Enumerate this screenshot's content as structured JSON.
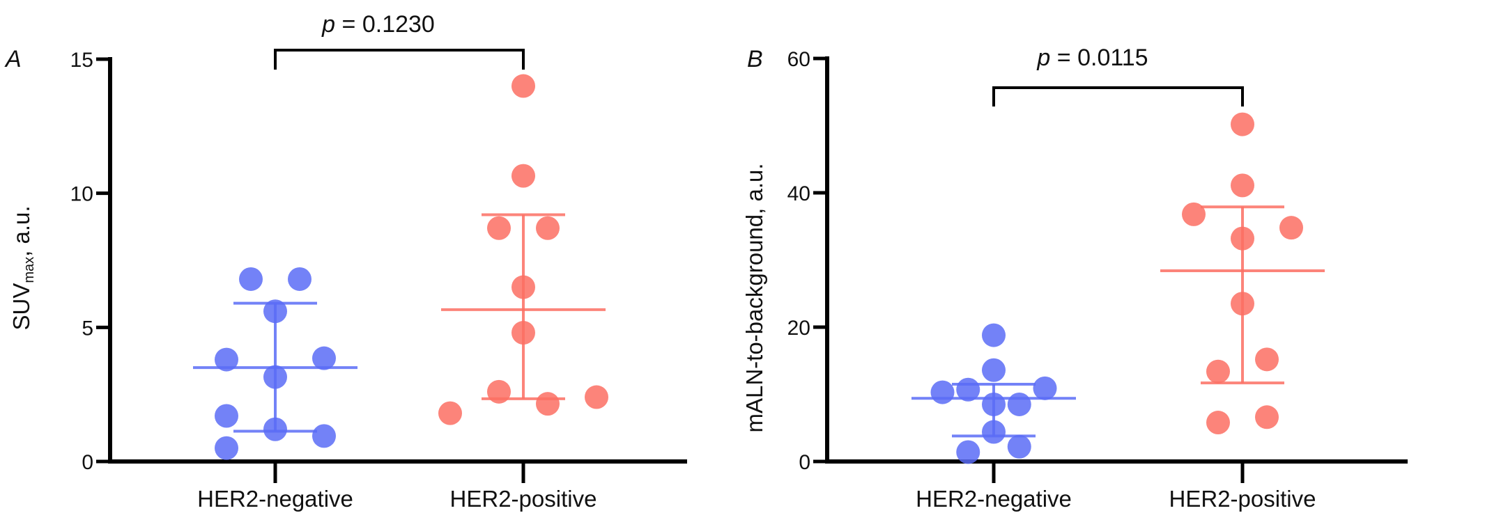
{
  "chart_data": [
    {
      "type": "scatter",
      "panel_label": "A",
      "ylabel": "SUV",
      "ylabel_subscript": "max",
      "ylabel_suffix": ", a.u.",
      "ylim": [
        0,
        15
      ],
      "yticks": [
        "0",
        "5",
        "10",
        "15"
      ],
      "ytick_values": [
        0,
        5,
        10,
        15
      ],
      "categories": [
        "HER2-negative",
        "HER2-positive"
      ],
      "grid": false,
      "annotation": {
        "p_symbol": "p",
        "p_text": "= 0.1230",
        "between": [
          "HER2-negative",
          "HER2-positive"
        ]
      },
      "series": [
        {
          "category": "HER2-negative",
          "color": "#5a6cf6",
          "values": [
            6.8,
            6.8,
            5.6,
            3.8,
            3.85,
            3.15,
            1.7,
            1.2,
            0.95,
            0.5
          ],
          "mean": 3.5,
          "error_low": 1.13,
          "error_high": 5.9
        },
        {
          "category": "HER2-positive",
          "color": "#fb6f63",
          "values": [
            14.0,
            10.65,
            8.7,
            8.7,
            6.5,
            4.8,
            2.6,
            2.15,
            2.4,
            1.8
          ],
          "mean": 5.66,
          "error_low": 2.34,
          "error_high": 9.2
        }
      ]
    },
    {
      "type": "scatter",
      "panel_label": "B",
      "ylabel": "mALN-to-background, a.u.",
      "ylim": [
        0,
        60
      ],
      "yticks": [
        "0",
        "20",
        "40",
        "60"
      ],
      "ytick_values": [
        0,
        20,
        40,
        60
      ],
      "categories": [
        "HER2-negative",
        "HER2-positive"
      ],
      "grid": false,
      "annotation": {
        "p_symbol": "p",
        "p_text": "= 0.0115",
        "between": [
          "HER2-negative",
          "HER2-positive"
        ]
      },
      "series": [
        {
          "category": "HER2-negative",
          "color": "#5a6cf6",
          "values": [
            18.8,
            13.6,
            10.3,
            10.7,
            10.9,
            8.5,
            8.5,
            4.4,
            2.2,
            1.4
          ],
          "mean": 9.4,
          "error_low": 3.8,
          "error_high": 11.5
        },
        {
          "category": "HER2-positive",
          "color": "#fb6f63",
          "values": [
            50.2,
            41.1,
            36.8,
            34.8,
            33.2,
            23.5,
            15.2,
            13.4,
            6.6,
            5.8
          ],
          "mean": 28.4,
          "error_low": 11.7,
          "error_high": 37.9
        }
      ]
    }
  ]
}
